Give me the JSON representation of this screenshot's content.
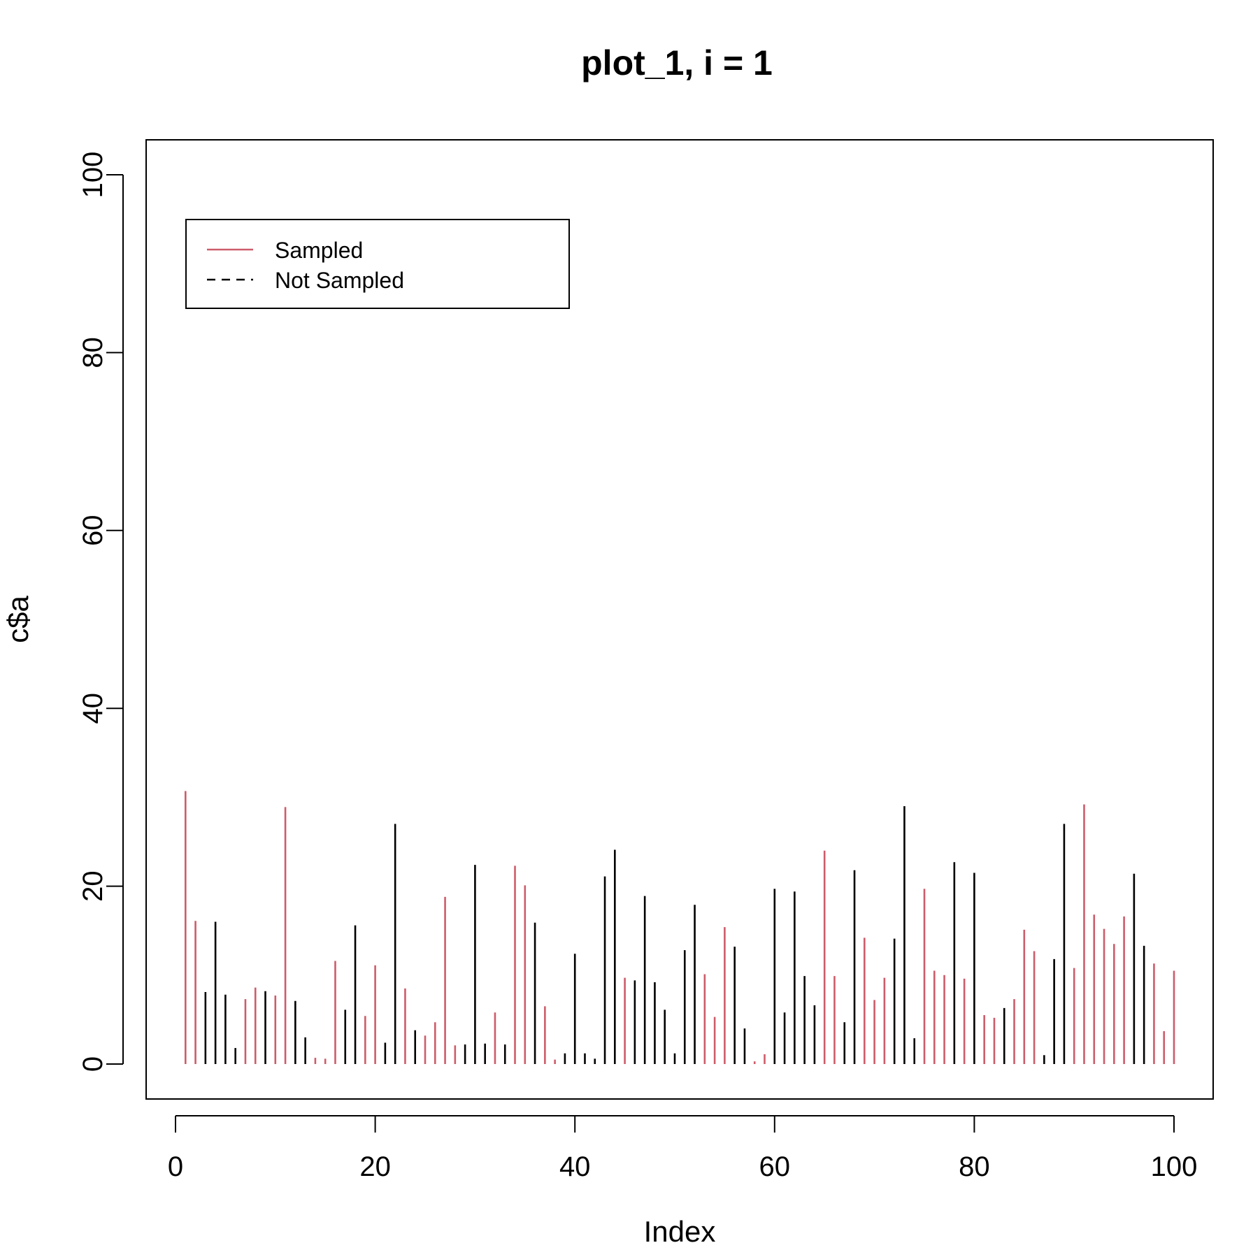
{
  "chart_data": {
    "type": "bar",
    "title": "plot_1, i = 1",
    "xlabel": "Index",
    "ylabel": "c$a",
    "xlim": [
      0,
      100
    ],
    "ylim": [
      0,
      100
    ],
    "x_ticks": [
      "0",
      "20",
      "40",
      "60",
      "80",
      "100"
    ],
    "y_ticks": [
      "0",
      "20",
      "40",
      "60",
      "80",
      "100"
    ],
    "grid": false,
    "legend": {
      "position": "top-left",
      "entries": [
        {
          "label": "Sampled",
          "color": "#cd5c6a",
          "line": "solid"
        },
        {
          "label": "Not Sampled",
          "color": "#000000",
          "line": "dashed"
        }
      ]
    },
    "colors": {
      "sampled": "#cd5c6a",
      "not_sampled": "#000000"
    },
    "x": [
      1,
      2,
      3,
      4,
      5,
      6,
      7,
      8,
      9,
      10,
      11,
      12,
      13,
      14,
      15,
      16,
      17,
      18,
      19,
      20,
      21,
      22,
      23,
      24,
      25,
      26,
      27,
      28,
      29,
      30,
      31,
      32,
      33,
      34,
      35,
      36,
      37,
      38,
      39,
      40,
      41,
      42,
      43,
      44,
      45,
      46,
      47,
      48,
      49,
      50,
      51,
      52,
      53,
      54,
      55,
      56,
      57,
      58,
      59,
      60,
      61,
      62,
      63,
      64,
      65,
      66,
      67,
      68,
      69,
      70,
      71,
      72,
      73,
      74,
      75,
      76,
      77,
      78,
      79,
      80,
      81,
      82,
      83,
      84,
      85,
      86,
      87,
      88,
      89,
      90,
      91,
      92,
      93,
      94,
      95,
      96,
      97,
      98,
      99,
      100
    ],
    "values": [
      30.7,
      16.1,
      8.1,
      16.0,
      7.8,
      1.8,
      7.3,
      8.6,
      8.2,
      7.7,
      28.9,
      7.1,
      3.0,
      0.7,
      0.6,
      11.6,
      6.1,
      15.6,
      5.4,
      11.1,
      2.4,
      27.0,
      8.5,
      3.8,
      3.2,
      4.7,
      18.8,
      2.1,
      2.2,
      22.4,
      2.3,
      5.8,
      2.2,
      22.3,
      20.1,
      15.9,
      6.5,
      0.5,
      1.2,
      12.4,
      1.2,
      0.6,
      21.1,
      24.1,
      9.7,
      9.4,
      18.9,
      9.2,
      6.1,
      1.2,
      12.8,
      17.9,
      10.1,
      5.3,
      15.4,
      13.2,
      4.0,
      0.3,
      1.1,
      19.7,
      5.8,
      19.4,
      9.9,
      6.6,
      24.0,
      9.9,
      4.7,
      21.8,
      14.2,
      7.2,
      9.7,
      14.1,
      29.0,
      2.9,
      19.7,
      10.5,
      10.0,
      22.7,
      9.6,
      21.5,
      5.5,
      5.2,
      6.3,
      7.3,
      15.1,
      12.7,
      1.0,
      11.8,
      27.0,
      10.8,
      29.2,
      16.8,
      15.2,
      13.5,
      16.6,
      21.4,
      13.3,
      11.3,
      3.7,
      10.5
    ],
    "sampled": [
      1,
      1,
      0,
      0,
      0,
      0,
      1,
      1,
      0,
      1,
      1,
      0,
      0,
      1,
      1,
      1,
      0,
      0,
      1,
      1,
      0,
      0,
      1,
      0,
      1,
      1,
      1,
      1,
      0,
      0,
      0,
      1,
      0,
      1,
      1,
      0,
      1,
      1,
      0,
      0,
      0,
      0,
      0,
      0,
      1,
      0,
      0,
      0,
      0,
      0,
      0,
      0,
      1,
      1,
      1,
      0,
      0,
      1,
      1,
      0,
      0,
      0,
      0,
      0,
      1,
      1,
      0,
      0,
      1,
      1,
      1,
      0,
      0,
      0,
      1,
      1,
      1,
      0,
      1,
      0,
      1,
      1,
      0,
      1,
      1,
      1,
      0,
      0,
      0,
      1,
      1,
      1,
      1,
      1,
      1,
      0,
      0,
      1,
      1,
      1
    ]
  }
}
